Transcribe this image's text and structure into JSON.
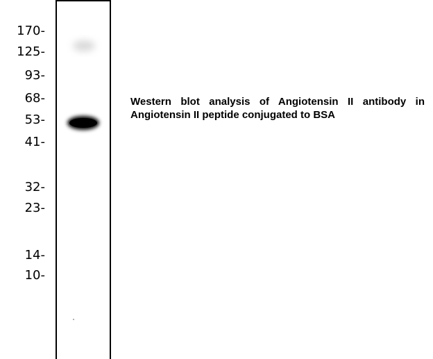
{
  "figure": {
    "markers": [
      "170-",
      "125-",
      "93-",
      "68-",
      "53-",
      "41-",
      "32-",
      "23-",
      "14-",
      "10-"
    ],
    "caption": "Western blot analysis of Angiotensin II antibody in Angiotensin II peptide conjugated to BSA"
  }
}
